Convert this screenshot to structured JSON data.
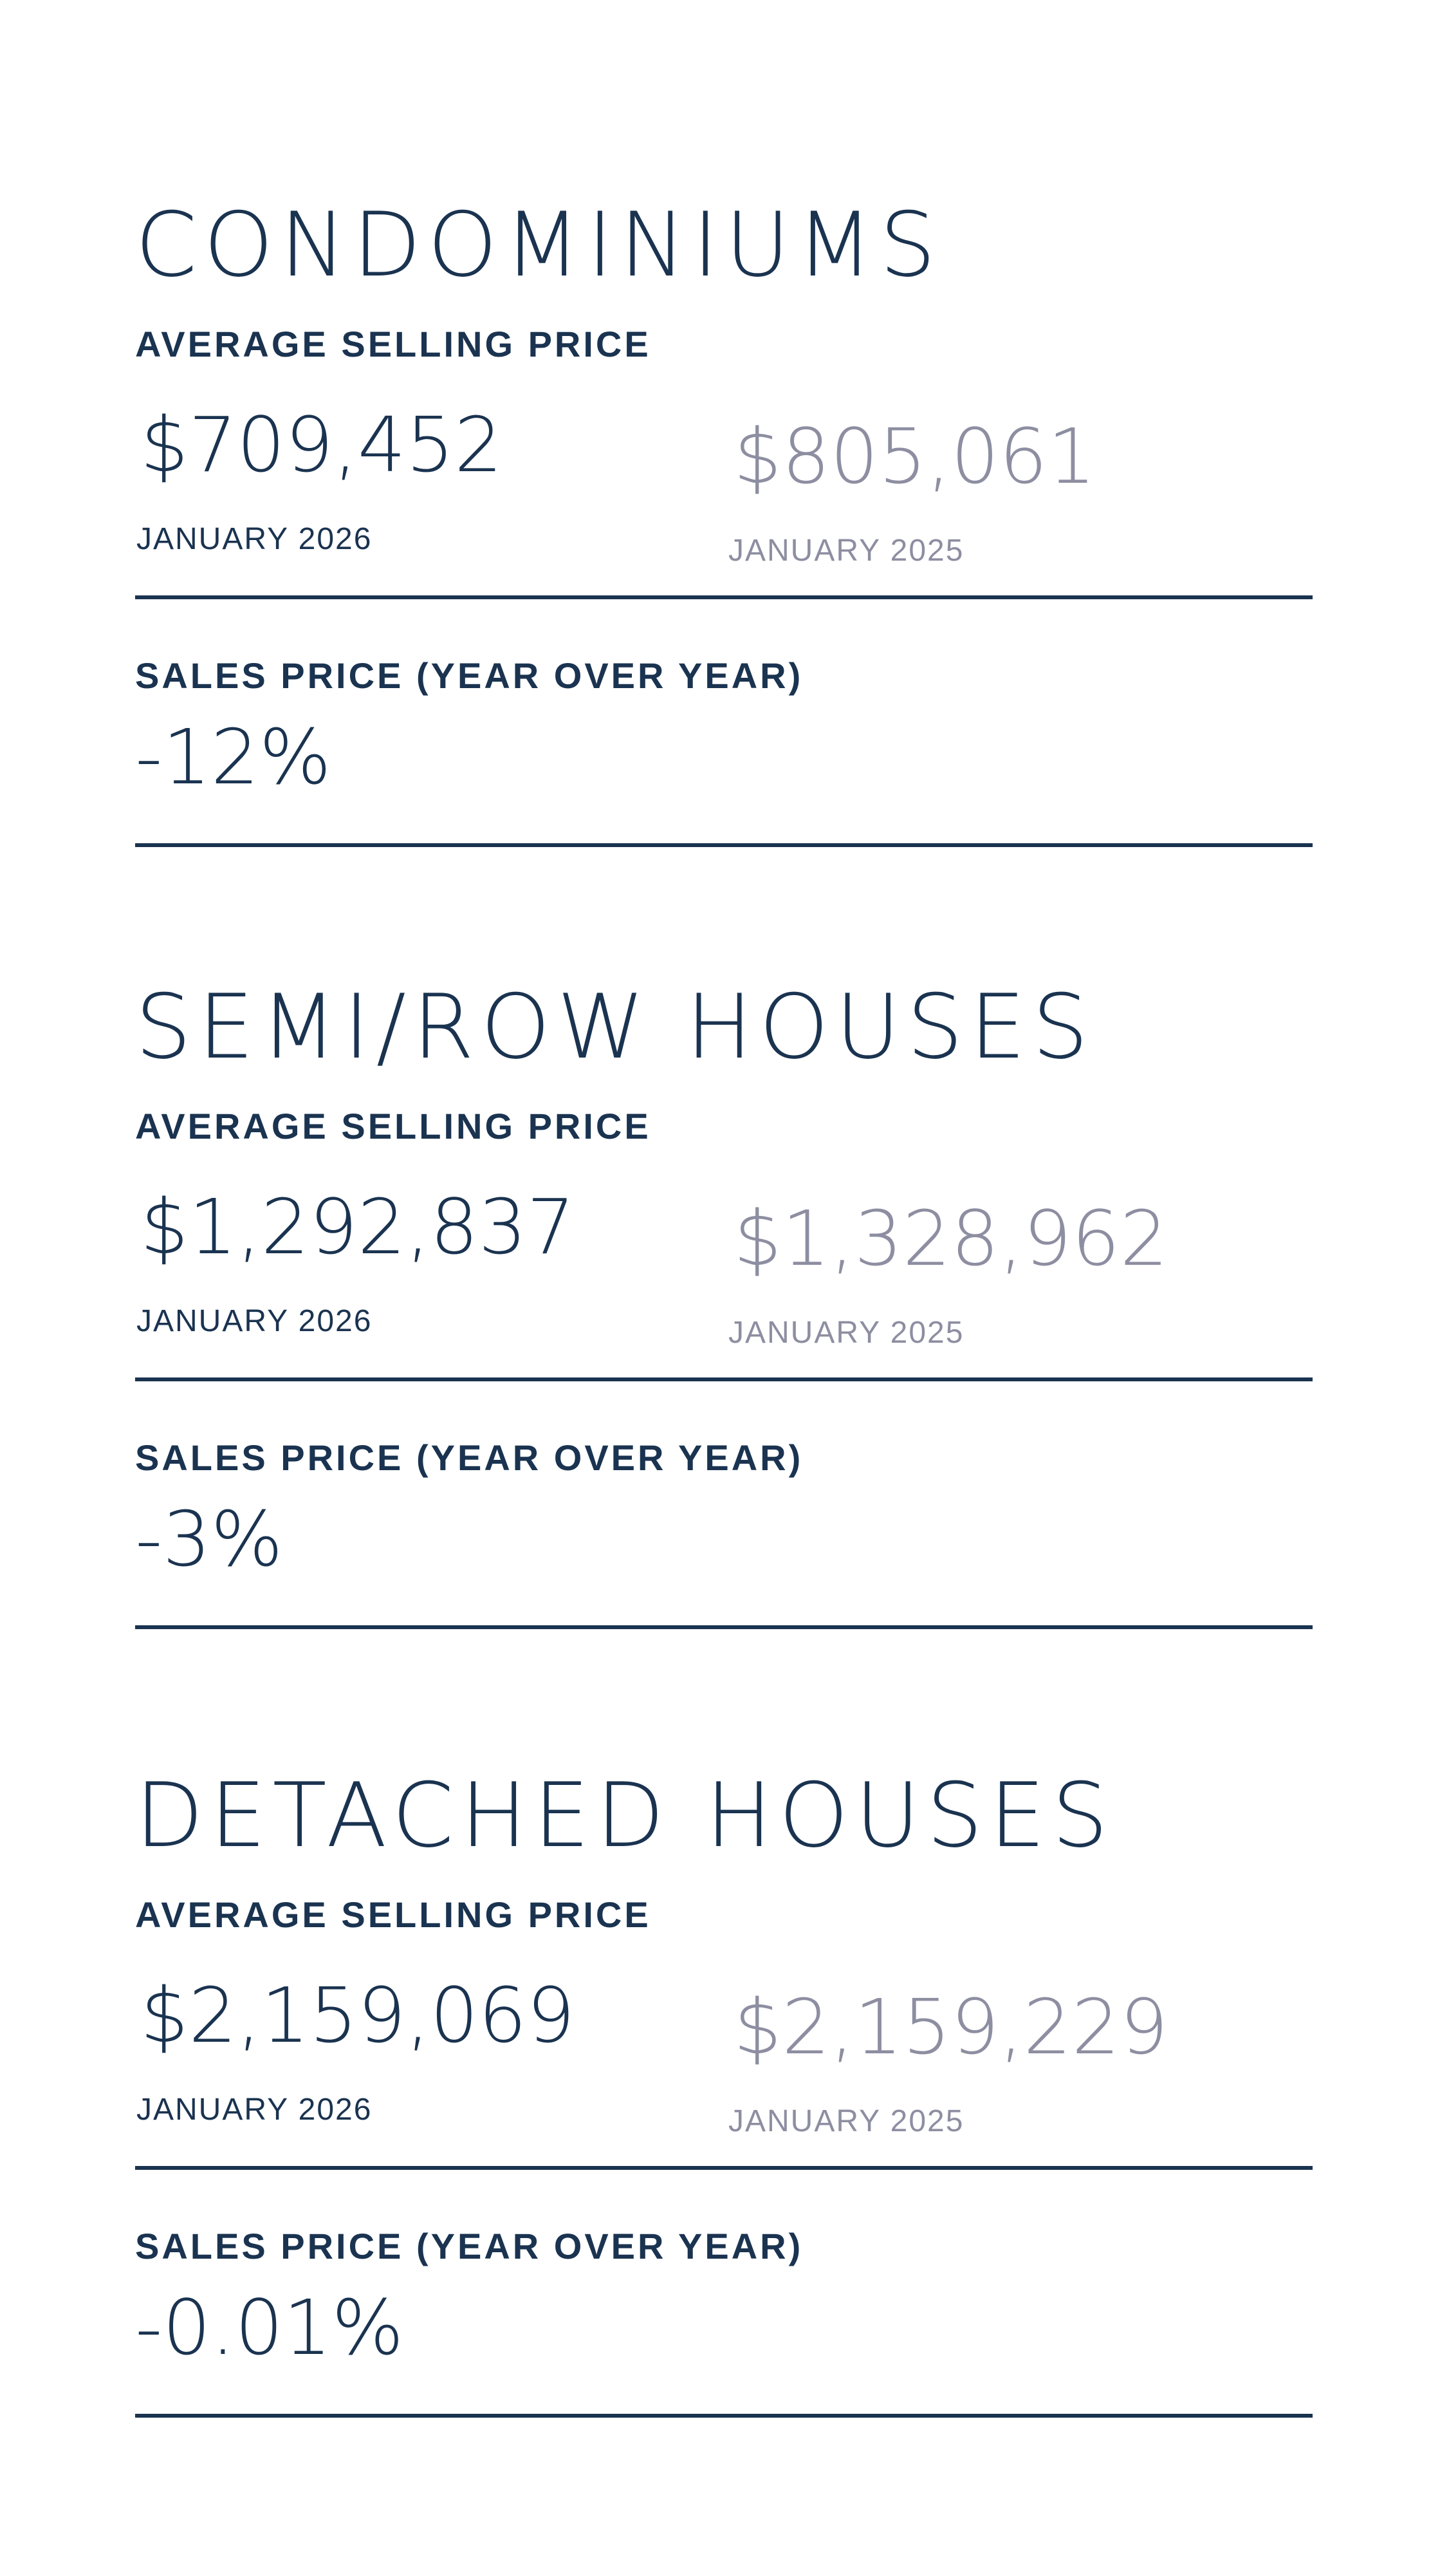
{
  "sections": [
    {
      "title": "CONDOMINIUMS",
      "avg_label": "AVERAGE SELLING PRICE",
      "current_price": "$709,452",
      "current_period": "JANUARY 2026",
      "previous_price": "$805,061",
      "previous_period": "JANUARY 2025",
      "yoy_label": "SALES PRICE (YEAR OVER YEAR)",
      "yoy_value": "-12%"
    },
    {
      "title": "SEMI/ROW HOUSES",
      "avg_label": "AVERAGE SELLING PRICE",
      "current_price": "$1,292,837",
      "current_period": "JANUARY 2026",
      "previous_price": "$1,328,962",
      "previous_period": "JANUARY 2025",
      "yoy_label": "SALES PRICE (YEAR OVER YEAR)",
      "yoy_value": "-3%"
    },
    {
      "title": "DETACHED HOUSES",
      "avg_label": "AVERAGE SELLING PRICE",
      "current_price": "$2,159,069",
      "current_period": "JANUARY 2026",
      "previous_price": "$2,159,229",
      "previous_period": "JANUARY 2025",
      "yoy_label": "SALES PRICE (YEAR OVER YEAR)",
      "yoy_value": "-0.01%"
    }
  ],
  "colors": {
    "primary_text": "#1a3350",
    "muted_text": "#8d8ea1",
    "background": "#ffffff"
  }
}
